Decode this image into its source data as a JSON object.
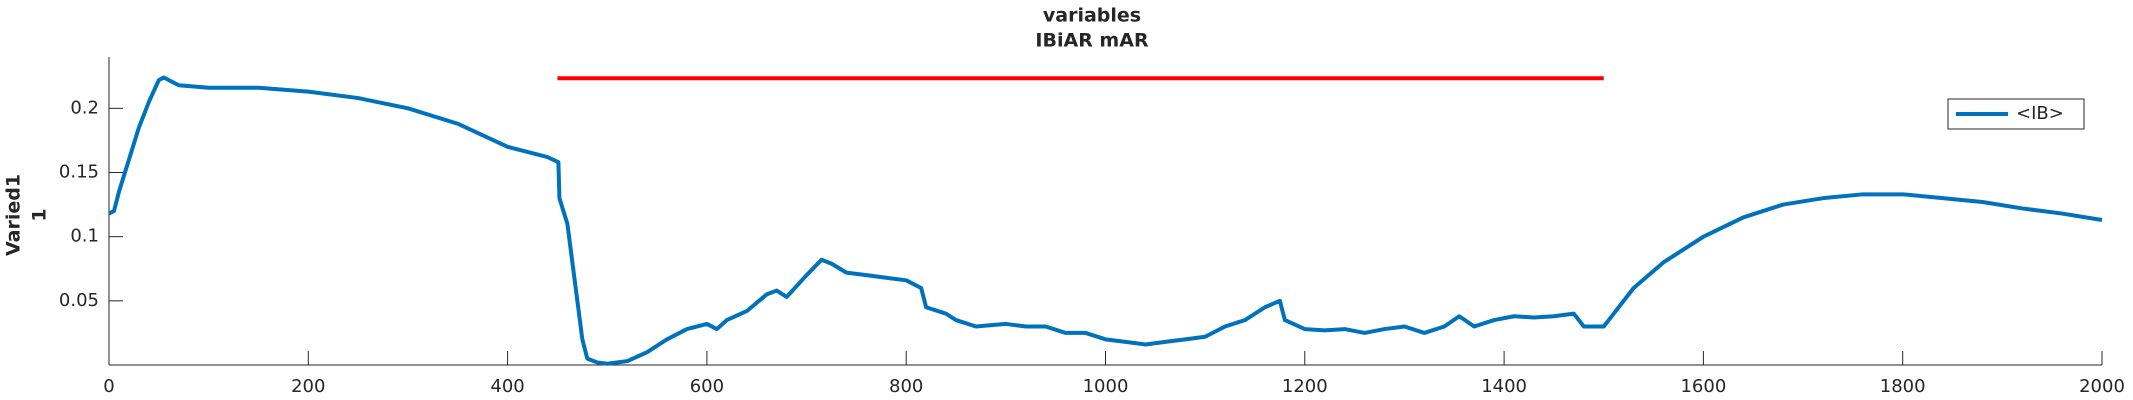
{
  "chart_data": {
    "type": "line",
    "title": [
      "variables",
      "IBiAR mAR"
    ],
    "ylabel": [
      "Varied1",
      "1"
    ],
    "xlim": [
      0,
      2000
    ],
    "ylim": [
      0,
      0.24
    ],
    "xticks": [
      0,
      200,
      400,
      600,
      800,
      1000,
      1200,
      1400,
      1600,
      1800,
      2000
    ],
    "yticks": [
      0.05,
      0.1,
      0.15,
      0.2
    ],
    "legend": "upper right",
    "series": [
      {
        "name": "<IB>",
        "color": "#0072bd",
        "x": [
          0,
          5,
          10,
          20,
          30,
          40,
          50,
          55,
          60,
          70,
          100,
          150,
          200,
          250,
          300,
          350,
          400,
          440,
          451,
          452,
          460,
          465,
          470,
          475,
          480,
          490,
          500,
          520,
          540,
          560,
          580,
          600,
          610,
          620,
          640,
          660,
          670,
          680,
          700,
          715,
          725,
          740,
          760,
          780,
          800,
          815,
          820,
          840,
          850,
          870,
          900,
          920,
          940,
          960,
          980,
          1000,
          1020,
          1040,
          1060,
          1080,
          1100,
          1120,
          1140,
          1160,
          1175,
          1180,
          1200,
          1220,
          1240,
          1260,
          1280,
          1300,
          1320,
          1340,
          1355,
          1370,
          1390,
          1410,
          1430,
          1450,
          1470,
          1480,
          1500,
          1510,
          1530,
          1560,
          1600,
          1640,
          1680,
          1720,
          1760,
          1800,
          1840,
          1880,
          1920,
          1960,
          2000
        ],
        "values": [
          0.118,
          0.12,
          0.135,
          0.16,
          0.185,
          0.205,
          0.222,
          0.224,
          0.222,
          0.218,
          0.216,
          0.216,
          0.213,
          0.208,
          0.2,
          0.188,
          0.17,
          0.162,
          0.158,
          0.13,
          0.11,
          0.08,
          0.05,
          0.02,
          0.005,
          0.002,
          0.001,
          0.003,
          0.01,
          0.02,
          0.028,
          0.032,
          0.028,
          0.035,
          0.042,
          0.055,
          0.058,
          0.053,
          0.07,
          0.082,
          0.079,
          0.072,
          0.07,
          0.068,
          0.066,
          0.06,
          0.045,
          0.04,
          0.035,
          0.03,
          0.032,
          0.03,
          0.03,
          0.025,
          0.025,
          0.02,
          0.018,
          0.016,
          0.018,
          0.02,
          0.022,
          0.03,
          0.035,
          0.045,
          0.05,
          0.035,
          0.028,
          0.027,
          0.028,
          0.025,
          0.028,
          0.03,
          0.025,
          0.03,
          0.038,
          0.03,
          0.035,
          0.038,
          0.037,
          0.038,
          0.04,
          0.03,
          0.03,
          0.04,
          0.06,
          0.08,
          0.1,
          0.115,
          0.125,
          0.13,
          0.133,
          0.133,
          0.13,
          0.127,
          0.122,
          0.118,
          0.113
        ]
      },
      {
        "color": "#ff0000",
        "x": [
          450,
          1500
        ],
        "values": [
          0.2234,
          0.2234
        ]
      }
    ]
  }
}
